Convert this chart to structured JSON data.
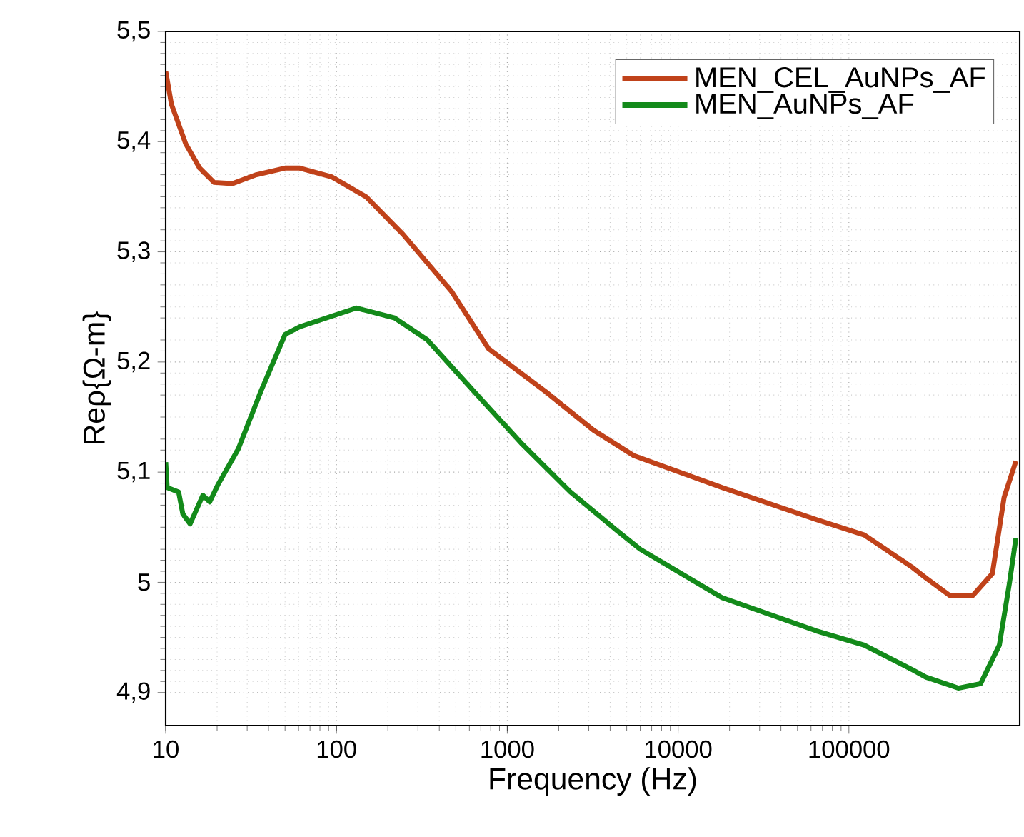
{
  "chart_data": {
    "type": "line",
    "xlabel": "Frequency (Hz)",
    "ylabel": "Reρ{Ω-m}",
    "log": "x",
    "grid": true,
    "legend": "top right",
    "line_style": "solid",
    "marker": "none",
    "xlim": [
      10,
      1000000
    ],
    "xticks": [
      10,
      100,
      1000,
      10000,
      100000
    ],
    "ylim": [
      4.87,
      5.5
    ],
    "yticks": [
      {
        "value": 4.9,
        "label": "4,9"
      },
      5,
      {
        "value": 5.1,
        "label": "5,1"
      },
      {
        "value": 5.2,
        "label": "5,2"
      },
      {
        "value": 5.3,
        "label": "5,3"
      },
      {
        "value": 5.4,
        "label": "5,4"
      },
      {
        "value": 5.5,
        "label": "5,5"
      }
    ],
    "series": [
      {
        "name": "MEN_CEL_AuNPs_AF",
        "color": "#c0421a",
        "x": [
          10,
          10.8,
          13.1,
          15.8,
          19.2,
          24.6,
          34,
          50,
          61,
          94,
          149,
          245,
          472,
          778,
          1680,
          3200,
          5500,
          18100,
          64300,
          123000,
          233000,
          282000,
          390000,
          531000,
          692000,
          810000,
          950000
        ],
        "values": [
          5.464,
          5.434,
          5.398,
          5.376,
          5.363,
          5.362,
          5.37,
          5.376,
          5.376,
          5.368,
          5.35,
          5.316,
          5.264,
          5.212,
          5.173,
          5.138,
          5.115,
          5.086,
          5.057,
          5.043,
          5.014,
          5.004,
          4.988,
          4.988,
          5.008,
          5.077,
          5.11
        ]
      },
      {
        "name": "MEN_AuNPs_AF",
        "color": "#138a1a",
        "x": [
          10,
          10.2,
          11.9,
          12.6,
          13.9,
          16.5,
          18.1,
          20.3,
          26.6,
          36,
          50,
          61,
          131,
          219,
          341,
          641,
          1230,
          2340,
          4380,
          6000,
          18100,
          64300,
          123000,
          233000,
          282000,
          437000,
          590000,
          760000,
          870000,
          950000
        ],
        "values": [
          5.109,
          5.086,
          5.082,
          5.062,
          5.053,
          5.079,
          5.073,
          5.089,
          5.121,
          5.173,
          5.225,
          5.232,
          5.249,
          5.24,
          5.22,
          5.173,
          5.125,
          5.082,
          5.047,
          5.03,
          4.986,
          4.956,
          4.943,
          4.921,
          4.914,
          4.904,
          4.908,
          4.943,
          4.999,
          5.04
        ]
      }
    ]
  }
}
